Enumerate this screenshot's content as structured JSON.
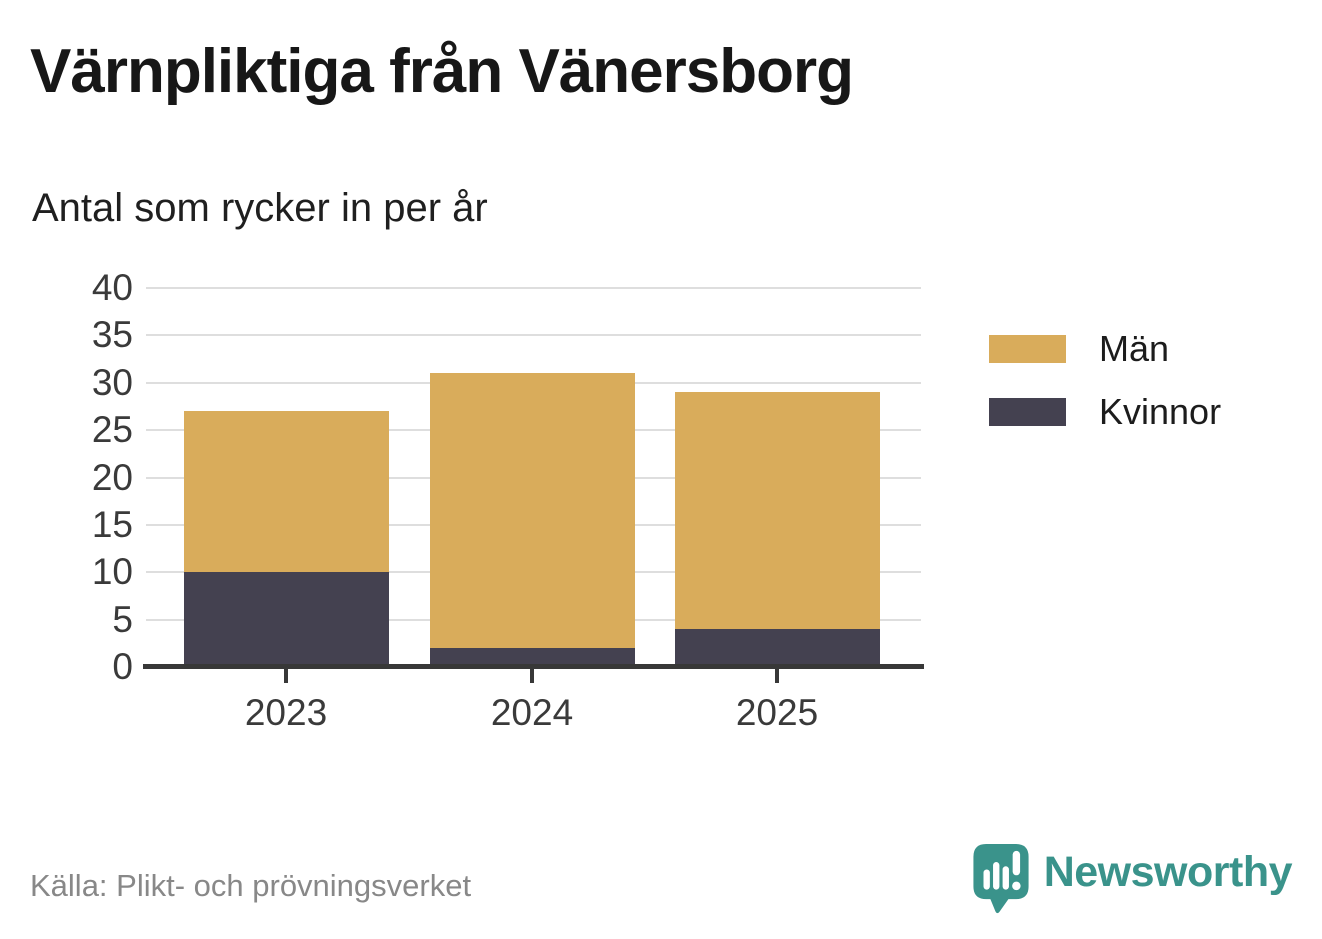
{
  "header": {
    "title": "Värnpliktiga från Vänersborg",
    "subtitle": "Antal som rycker in per år"
  },
  "chart_data": {
    "type": "bar",
    "stacked": true,
    "categories": [
      "2023",
      "2024",
      "2025"
    ],
    "series": [
      {
        "name": "Män",
        "color": "#D9AC5B",
        "values": [
          17,
          29,
          25
        ]
      },
      {
        "name": "Kvinnor",
        "color": "#444150",
        "values": [
          10,
          2,
          4
        ]
      }
    ],
    "stack_order_bottom_to_top": [
      "Kvinnor",
      "Män"
    ],
    "totals": [
      27,
      31,
      29
    ],
    "title": "Värnpliktiga från Vänersborg",
    "subtitle": "Antal som rycker in per år",
    "xlabel": "",
    "ylabel": "",
    "ylim": [
      0,
      40
    ],
    "yticks": [
      0,
      5,
      10,
      15,
      20,
      25,
      30,
      35,
      40
    ],
    "grid": true,
    "legend_position": "right"
  },
  "legend": {
    "items": [
      {
        "label": "Män",
        "color": "#D9AC5B"
      },
      {
        "label": "Kvinnor",
        "color": "#444150"
      }
    ]
  },
  "footer": {
    "source": "Källa: Plikt- och prövningsverket",
    "brand": "Newsworthy",
    "brand_color": "#3A938B"
  },
  "colors": {
    "men": "#D9AC5B",
    "kvinnor": "#444150",
    "gridline": "#DEDEDE",
    "axis": "#383838",
    "brand_teal": "#3A938B"
  }
}
